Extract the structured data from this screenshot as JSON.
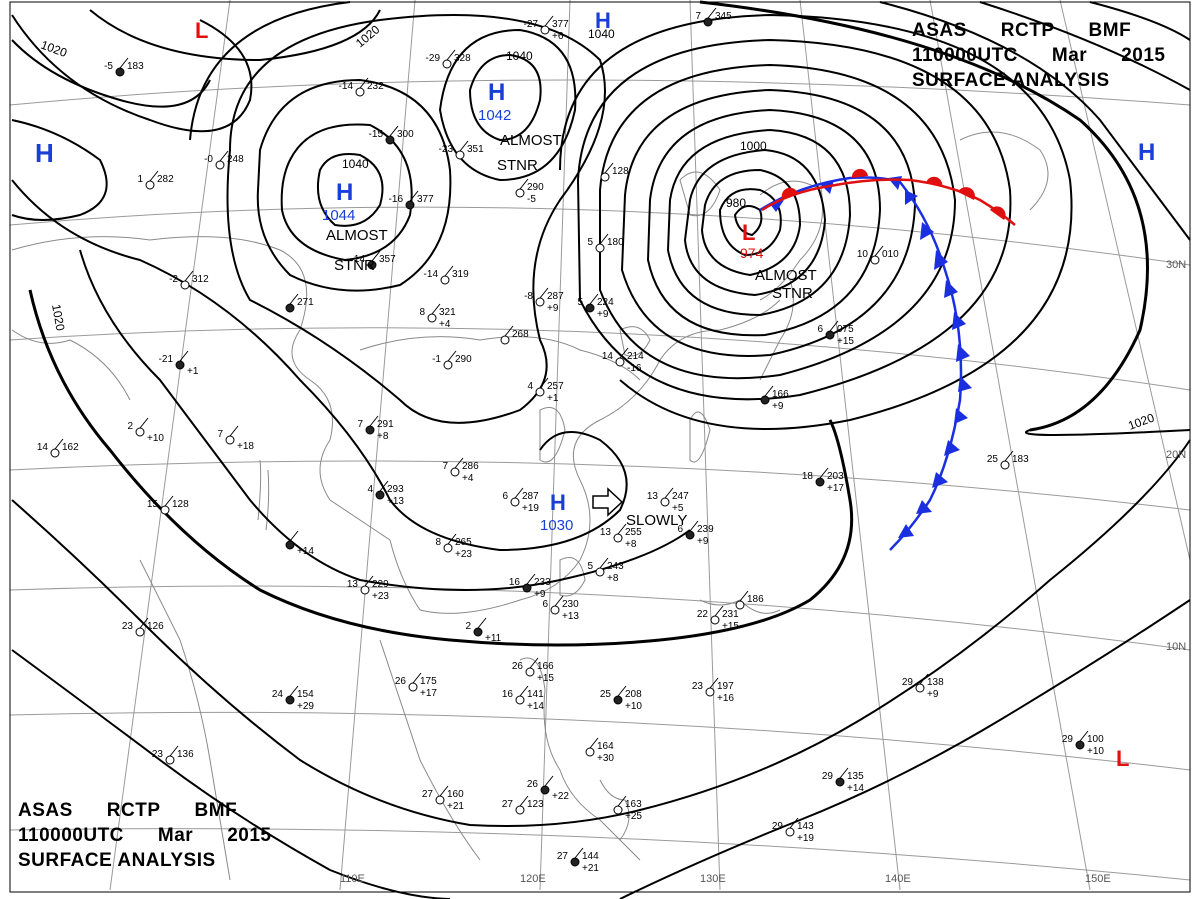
{
  "header": {
    "agency": "ASAS",
    "station": "RCTP",
    "code": "BMF",
    "time": "110000UTC",
    "month": "Mar",
    "year": "2015",
    "title": "SURFACE ANALYSIS"
  },
  "colors": {
    "high_marker": "#1a3fd6",
    "low_marker": "#e01010",
    "cold_front": "#1a2fe0",
    "warm_front": "#e01010",
    "isobar": "#000000",
    "grid": "#9a9a9a",
    "coast": "#8a8a8a"
  },
  "grid_labels": {
    "longitudes": [
      "110E",
      "120E",
      "130E",
      "140E",
      "150E"
    ],
    "latitudes": [
      "30N",
      "20N",
      "10N"
    ]
  },
  "isobar_labels": [
    "1020",
    "1020",
    "1040",
    "1040",
    "1040",
    "1000",
    "980",
    "1020",
    "1020"
  ],
  "pressure_systems": [
    {
      "type": "H",
      "value": "",
      "note": ""
    },
    {
      "type": "H",
      "value": "1042",
      "note": ""
    },
    {
      "type": "H",
      "value": "1044",
      "note": ""
    },
    {
      "type": "H",
      "value": "",
      "note": ""
    },
    {
      "type": "H",
      "value": "",
      "note": ""
    },
    {
      "type": "H",
      "value": "1030",
      "note": ""
    },
    {
      "type": "L",
      "value": "",
      "note": ""
    },
    {
      "type": "L",
      "value": "974",
      "note": ""
    },
    {
      "type": "L",
      "value": "",
      "note": ""
    }
  ],
  "movement_notes": [
    {
      "line1": "ALMOST",
      "line2": "STNR"
    },
    {
      "line1": "ALMOST",
      "line2": "STNR"
    },
    {
      "line1": "ALMOST",
      "line2": "STNR"
    },
    {
      "line1": "SLOWLY",
      "line2": ""
    }
  ],
  "stations": [
    {
      "top": "",
      "pressure": "183",
      "tend": "",
      "temp": "-5"
    },
    {
      "top": "",
      "pressure": "328",
      "tend": "",
      "temp": "-29"
    },
    {
      "top": "",
      "pressure": "377",
      "tend": "+6",
      "temp": "-27"
    },
    {
      "top": "",
      "pressure": "345",
      "tend": "",
      "temp": "7"
    },
    {
      "top": "",
      "pressure": "232",
      "tend": "",
      "temp": "-14"
    },
    {
      "top": "",
      "pressure": "248",
      "tend": "",
      "temp": "-0"
    },
    {
      "top": "",
      "pressure": "300",
      "tend": "",
      "temp": "-15"
    },
    {
      "top": "",
      "pressure": "351",
      "tend": "",
      "temp": "-23"
    },
    {
      "top": "",
      "pressure": "282",
      "tend": "",
      "temp": "1"
    },
    {
      "top": "",
      "pressure": "377",
      "tend": "",
      "temp": "-16"
    },
    {
      "top": "",
      "pressure": "290",
      "tend": "-5",
      "temp": ""
    },
    {
      "top": "",
      "pressure": "128",
      "tend": "",
      "temp": ""
    },
    {
      "top": "",
      "pressure": "357",
      "tend": "",
      "temp": "-14"
    },
    {
      "top": "",
      "pressure": "319",
      "tend": "",
      "temp": "-14"
    },
    {
      "top": "",
      "pressure": "312",
      "tend": "",
      "temp": "-2"
    },
    {
      "top": "",
      "pressure": "271",
      "tend": "",
      "temp": ""
    },
    {
      "top": "",
      "pressure": "321",
      "tend": "+4",
      "temp": "8"
    },
    {
      "top": "",
      "pressure": "287",
      "tend": "+9",
      "temp": "-8"
    },
    {
      "top": "",
      "pressure": "224",
      "tend": "+9",
      "temp": "5"
    },
    {
      "top": "",
      "pressure": "180",
      "tend": "",
      "temp": "5"
    },
    {
      "top": "",
      "pressure": "268",
      "tend": "",
      "temp": ""
    },
    {
      "top": "",
      "pressure": "",
      "tend": "+1",
      "temp": "-21"
    },
    {
      "top": "",
      "pressure": "290",
      "tend": "",
      "temp": "-1"
    },
    {
      "top": "",
      "pressure": "010",
      "tend": "",
      "temp": "10"
    },
    {
      "top": "",
      "pressure": "075",
      "tend": "+15",
      "temp": "6"
    },
    {
      "top": "",
      "pressure": "257",
      "tend": "+1",
      "temp": "4"
    },
    {
      "top": "",
      "pressure": "214",
      "tend": "-16",
      "temp": "14"
    },
    {
      "top": "",
      "pressure": "166",
      "tend": "+9",
      "temp": ""
    },
    {
      "top": "",
      "pressure": "",
      "tend": "+10",
      "temp": "2"
    },
    {
      "top": "",
      "pressure": "",
      "tend": "+18",
      "temp": "7"
    },
    {
      "top": "",
      "pressure": "291",
      "tend": "+8",
      "temp": "7"
    },
    {
      "top": "",
      "pressure": "162",
      "tend": "",
      "temp": "14"
    },
    {
      "top": "",
      "pressure": "286",
      "tend": "+4",
      "temp": "7"
    },
    {
      "top": "",
      "pressure": "293",
      "tend": "+13",
      "temp": "4"
    },
    {
      "top": "",
      "pressure": "287",
      "tend": "+19",
      "temp": "6"
    },
    {
      "top": "",
      "pressure": "247",
      "tend": "+5",
      "temp": "13"
    },
    {
      "top": "",
      "pressure": "203",
      "tend": "+17",
      "temp": "18"
    },
    {
      "top": "",
      "pressure": "183",
      "tend": "",
      "temp": "25"
    },
    {
      "top": "",
      "pressure": "128",
      "tend": "",
      "temp": "15"
    },
    {
      "top": "",
      "pressure": "",
      "tend": "+14",
      "temp": ""
    },
    {
      "top": "",
      "pressure": "265",
      "tend": "+23",
      "temp": "8"
    },
    {
      "top": "",
      "pressure": "255",
      "tend": "+8",
      "temp": "13"
    },
    {
      "top": "",
      "pressure": "239",
      "tend": "+9",
      "temp": "6"
    },
    {
      "top": "",
      "pressure": "243",
      "tend": "+8",
      "temp": "5"
    },
    {
      "top": "",
      "pressure": "229",
      "tend": "+23",
      "temp": "13"
    },
    {
      "top": "",
      "pressure": "233",
      "tend": "+9",
      "temp": "16"
    },
    {
      "top": "",
      "pressure": "230",
      "tend": "+13",
      "temp": "6"
    },
    {
      "top": "",
      "pressure": "231",
      "tend": "+15",
      "temp": "22"
    },
    {
      "top": "",
      "pressure": "",
      "tend": "+11",
      "temp": "2"
    },
    {
      "top": "",
      "pressure": "126",
      "tend": "",
      "temp": "23"
    },
    {
      "top": "",
      "pressure": "175",
      "tend": "+17",
      "temp": "26"
    },
    {
      "top": "",
      "pressure": "154",
      "tend": "+29",
      "temp": "24"
    },
    {
      "top": "",
      "pressure": "166",
      "tend": "+15",
      "temp": "26"
    },
    {
      "top": "",
      "pressure": "141",
      "tend": "+14",
      "temp": "16"
    },
    {
      "top": "",
      "pressure": "208",
      "tend": "+10",
      "temp": "25"
    },
    {
      "top": "",
      "pressure": "197",
      "tend": "+16",
      "temp": "23"
    },
    {
      "top": "",
      "pressure": "138",
      "tend": "+9",
      "temp": "29"
    },
    {
      "top": "",
      "pressure": "100",
      "tend": "+10",
      "temp": "29"
    },
    {
      "top": "",
      "pressure": "136",
      "tend": "",
      "temp": "23"
    },
    {
      "top": "",
      "pressure": "164",
      "tend": "+30",
      "temp": ""
    },
    {
      "top": "",
      "pressure": "135",
      "tend": "+14",
      "temp": "29"
    },
    {
      "top": "",
      "pressure": "160",
      "tend": "+21",
      "temp": "27"
    },
    {
      "top": "",
      "pressure": "123",
      "tend": "",
      "temp": "27"
    },
    {
      "top": "",
      "pressure": "",
      "tend": "+22",
      "temp": "26"
    },
    {
      "top": "",
      "pressure": "163",
      "tend": "+25",
      "temp": ""
    },
    {
      "top": "",
      "pressure": "143",
      "tend": "+19",
      "temp": "29"
    },
    {
      "top": "",
      "pressure": "144",
      "tend": "+21",
      "temp": "27"
    },
    {
      "top": "",
      "pressure": "186",
      "tend": "",
      "temp": ""
    }
  ]
}
